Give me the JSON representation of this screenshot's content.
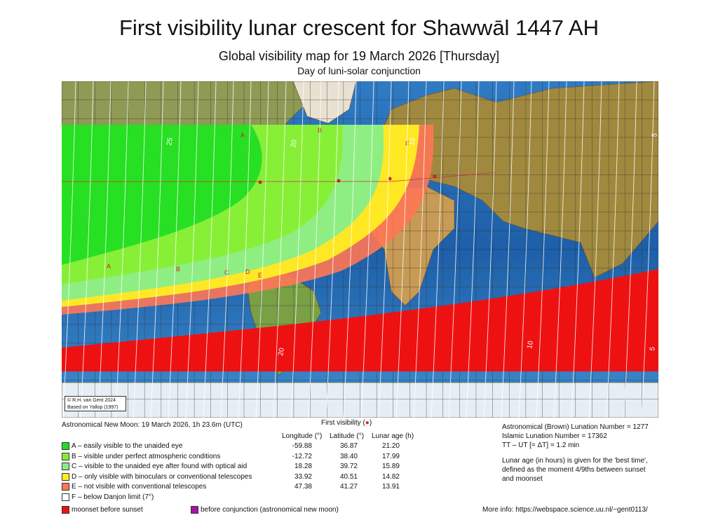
{
  "title": "First visibility lunar crescent for Shawwāl 1447 AH",
  "subtitle": "Global visibility map for 19 March 2026 [Thursday]",
  "subtitle2": "Day of luni-solar conjunction",
  "credit": [
    "© R.H. van Gent 2024",
    "Based on Yallop (1997)"
  ],
  "new_moon": "Astronomical New Moon: 19 March 2026, 1h 23.6m (UTC)",
  "first_visibility": "First visibility (",
  "first_visibility_marker": "●",
  "first_visibility_close": ")",
  "columns": [
    "Longitude (°)",
    "Latitude (°)",
    "Lunar age (h)"
  ],
  "zones": [
    {
      "label": "A – easily visible to the unaided eye",
      "color": "#22dd22",
      "longitude": "-59.88",
      "latitude": "36.87",
      "age": "21.20"
    },
    {
      "label": "B – visible under perfect atmospheric conditions",
      "color": "#88ee33",
      "longitude": "-12.72",
      "latitude": "38.40",
      "age": "17.99"
    },
    {
      "label": "C – visible to the unaided eye after found with optical aid",
      "color": "#88ee88",
      "longitude": "18.28",
      "latitude": "39.72",
      "age": "15.89"
    },
    {
      "label": "D – only visible with binoculars or conventional telescopes",
      "color": "#ffee22",
      "longitude": "33.92",
      "latitude": "40.51",
      "age": "14.82"
    },
    {
      "label": "E – not visible with conventional telescopes",
      "color": "#ff7755",
      "longitude": "47.38",
      "latitude": "41.27",
      "age": "13.91"
    },
    {
      "label": "F – below Danjon limit (7°)",
      "color": "#ffffff"
    }
  ],
  "extra_legend": [
    {
      "label": "moonset before sunset",
      "color": "#ee1111"
    },
    {
      "label": "before conjunction (astronomical new moon)",
      "color": "#aa11aa"
    }
  ],
  "info": [
    "Astronomical (Brown) Lunation Number = 1277",
    "Islamic Lunation Number = 17362",
    "TT – UT [= ΔT] = 1.2 min",
    "",
    "Lunar age (in hours) is given for the 'best time',",
    "defined as the moment 4/9ths between sunset",
    "and moonset"
  ],
  "more_info": "More info: https://webspace.science.uu.nl/~gent0113/",
  "map": {
    "zone_letters": [
      "A",
      "B",
      "C",
      "D",
      "E",
      "F"
    ],
    "contour_labels": [
      "25",
      "20",
      "15",
      "10",
      "5"
    ],
    "bottom_labels": [
      "20",
      "10",
      "5"
    ]
  }
}
